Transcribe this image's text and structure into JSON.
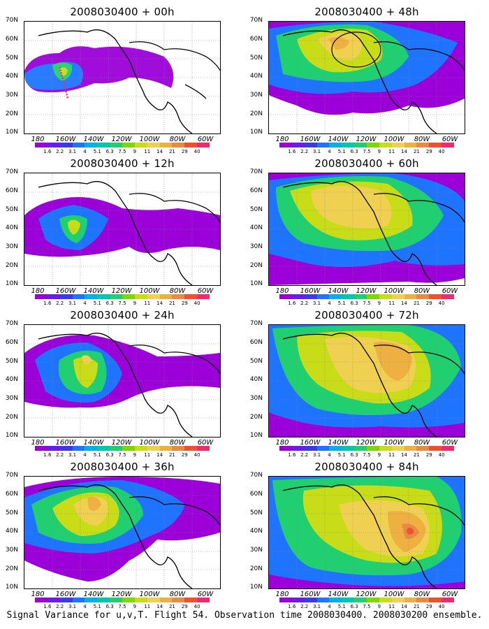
{
  "panels": [
    {
      "title": "2008030400 + 00h"
    },
    {
      "title": "2008030400 + 12h"
    },
    {
      "title": "2008030400 + 24h"
    },
    {
      "title": "2008030400 + 36h"
    },
    {
      "title": "2008030400 + 48h"
    },
    {
      "title": "2008030400 + 60h"
    },
    {
      "title": "2008030400 + 72h"
    },
    {
      "title": "2008030400 + 84h"
    }
  ],
  "lat_labels": [
    "70N",
    "60N",
    "50N",
    "40N",
    "30N",
    "20N",
    "10N"
  ],
  "lon_labels": [
    "180",
    "160W",
    "140W",
    "120W",
    "100W",
    "80W",
    "60W"
  ],
  "colorbar": {
    "labels": [
      "1.6",
      "2.2",
      "3.1",
      "4",
      "5.1",
      "6.3",
      "7.5",
      "9",
      "11",
      "14",
      "21",
      "29",
      "40"
    ],
    "colors": [
      "#9b00d8",
      "#6a1cf0",
      "#3a3ae8",
      "#1e74ff",
      "#00b0e8",
      "#00c8a8",
      "#20d070",
      "#7cd800",
      "#c8dc18",
      "#f0d050",
      "#eeb040",
      "#e88a40",
      "#f05030",
      "#f4286e"
    ]
  },
  "caption": "Signal Variance for u,v,T. Flight 54. Observation time 2008030400. 2008030200 ensemble."
}
